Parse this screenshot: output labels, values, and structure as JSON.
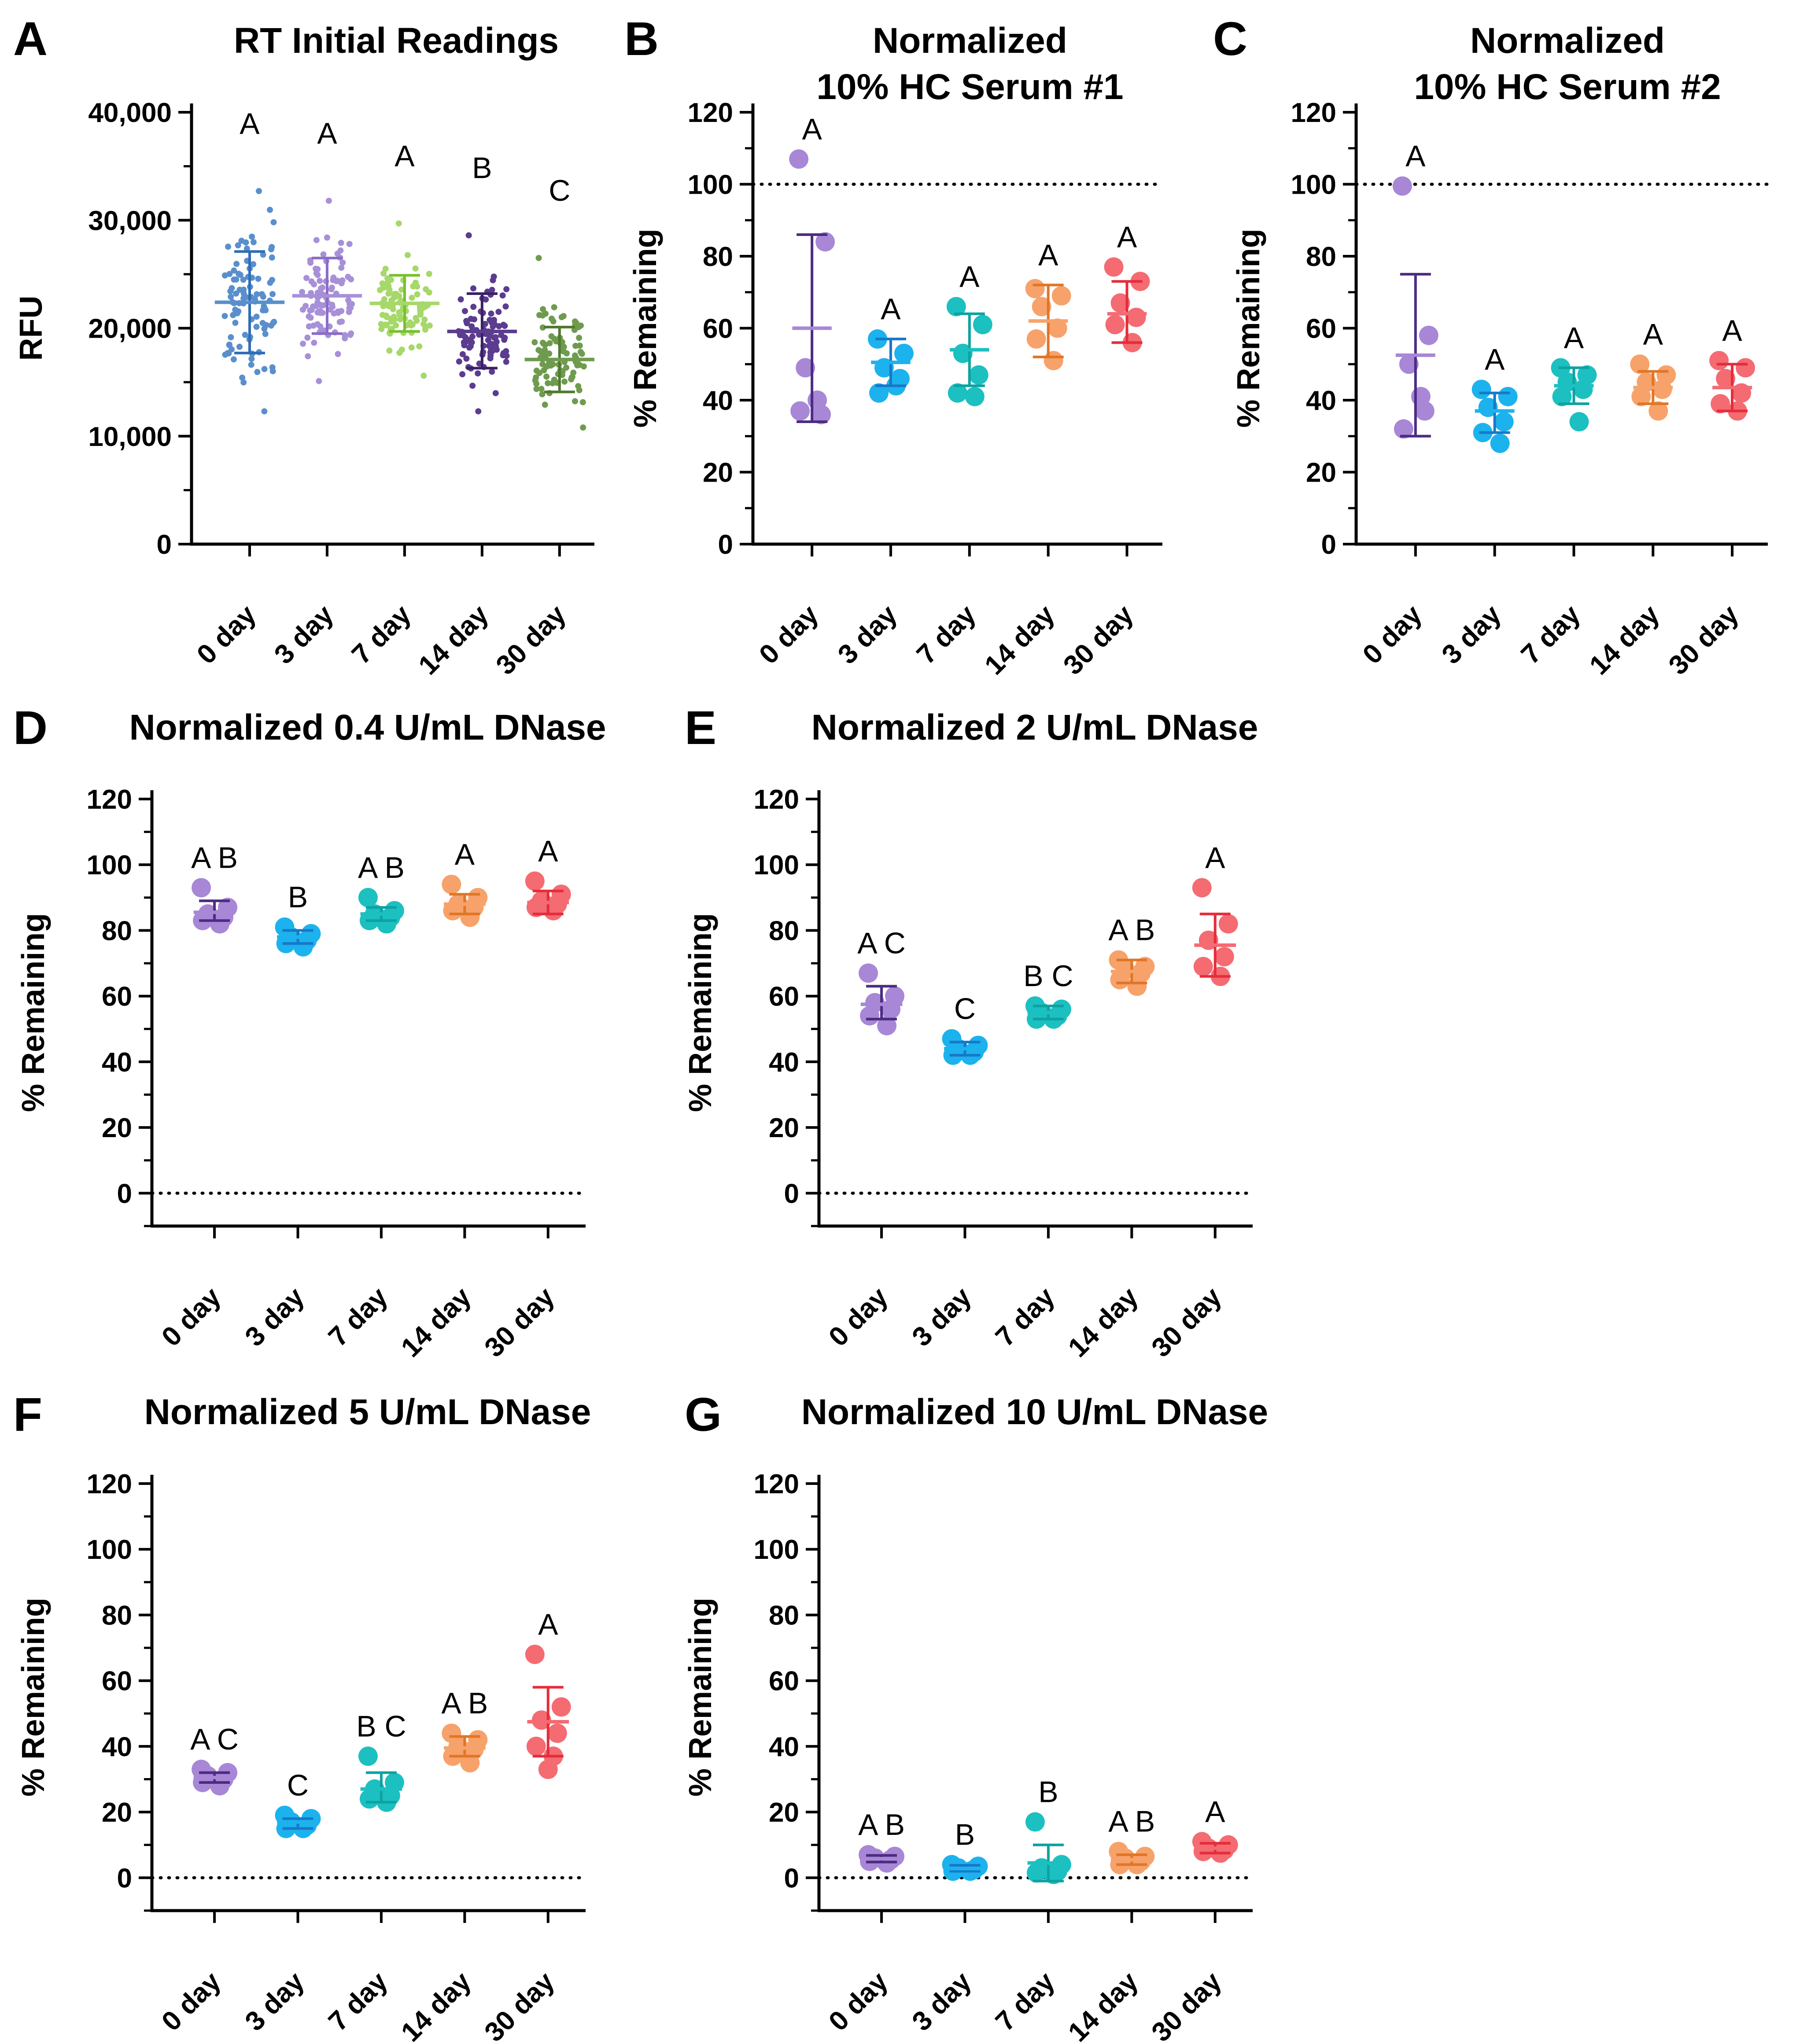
{
  "figure": {
    "palette": {
      "0 day": "#a787d6",
      "3 day": "#1cb2ee",
      "7 day": "#1cc0c0",
      "14 day": "#f7a26b",
      "30 day": "#f46b72",
      "A_0 day": "#5a8fcc",
      "A_3 day": "#a890d8",
      "A_7 day": "#a6d86a",
      "A_14 day": "#5b3c8f",
      "A_30 day": "#6f9b4e"
    },
    "errorbar_colors": {
      "0 day": "#4c2c82",
      "3 day": "#1878c8",
      "7 day": "#0ea2a2",
      "14 day": "#e07626",
      "30 day": "#e52d3a",
      "A_0 day": "#2f6eb6",
      "A_3 day": "#8a6cc8",
      "A_7 day": "#78c030",
      "A_14 day": "#3a2166",
      "A_30 day": "#4f7a30"
    }
  },
  "chart_data": [
    {
      "id": "A",
      "letter": "A",
      "type": "scatter",
      "title": [
        "RT Initial Readings"
      ],
      "ylabel": "RFU",
      "xlabel": "",
      "ylim": [
        0,
        40000
      ],
      "yticks": [
        0,
        10000,
        20000,
        30000,
        40000
      ],
      "ytick_labels": [
        "0",
        "10,000",
        "20,000",
        "30,000",
        "40,000"
      ],
      "minor_ticks": true,
      "reference_line": null,
      "categories": [
        "0 day",
        "3 day",
        "7 day",
        "14 day",
        "30 day"
      ],
      "dense": true,
      "series": [
        {
          "category": "0 day",
          "n": 96,
          "min": 12300,
          "max": 32700,
          "mean": 22400,
          "err_low": 17700,
          "err_high": 27100,
          "letters": "A"
        },
        {
          "category": "3 day",
          "n": 96,
          "min": 15100,
          "max": 31800,
          "mean": 23000,
          "err_low": 19500,
          "err_high": 26500,
          "letters": "A"
        },
        {
          "category": "7 day",
          "n": 96,
          "min": 15600,
          "max": 29700,
          "mean": 22300,
          "err_low": 19700,
          "err_high": 24900,
          "letters": "A"
        },
        {
          "category": "14 day",
          "n": 96,
          "min": 12300,
          "max": 28600,
          "mean": 19700,
          "err_low": 16300,
          "err_high": 23200,
          "letters": "B"
        },
        {
          "category": "30 day",
          "n": 96,
          "min": 10800,
          "max": 26500,
          "mean": 17100,
          "err_low": 14100,
          "err_high": 20100,
          "letters": "C"
        }
      ]
    },
    {
      "id": "B",
      "letter": "B",
      "type": "scatter",
      "title": [
        "Normalized",
        "10% HC Serum #1"
      ],
      "ylabel": "% Remaining",
      "xlabel": "",
      "ylim": [
        0,
        120
      ],
      "yticks": [
        0,
        20,
        40,
        60,
        80,
        100,
        120
      ],
      "ytick_labels": [
        "0",
        "20",
        "40",
        "60",
        "80",
        "100",
        "120"
      ],
      "minor_ticks": true,
      "reference_line": 100,
      "categories": [
        "0 day",
        "3 day",
        "7 day",
        "14 day",
        "30 day"
      ],
      "series": [
        {
          "category": "0 day",
          "points": [
            107,
            84,
            49,
            36,
            37,
            40
          ],
          "mean": 60,
          "err_low": 34,
          "err_high": 86,
          "letters": "A"
        },
        {
          "category": "3 day",
          "points": [
            57,
            53,
            49,
            46,
            42,
            44
          ],
          "mean": 50.5,
          "err_low": 44,
          "err_high": 57,
          "letters": "A"
        },
        {
          "category": "7 day",
          "points": [
            66,
            61,
            53,
            47,
            42,
            41
          ],
          "mean": 54,
          "err_low": 44,
          "err_high": 64,
          "letters": "A"
        },
        {
          "category": "14 day",
          "points": [
            71,
            69,
            66,
            60,
            57,
            51
          ],
          "mean": 62,
          "err_low": 52,
          "err_high": 72,
          "letters": "A"
        },
        {
          "category": "30 day",
          "points": [
            77,
            73,
            67,
            63,
            61,
            56
          ],
          "mean": 64,
          "err_low": 56,
          "err_high": 73,
          "letters": "A"
        }
      ]
    },
    {
      "id": "C",
      "letter": "C",
      "type": "scatter",
      "title": [
        "Normalized",
        "10% HC Serum #2"
      ],
      "ylabel": "% Remaining",
      "xlabel": "",
      "ylim": [
        0,
        120
      ],
      "yticks": [
        0,
        20,
        40,
        60,
        80,
        100,
        120
      ],
      "ytick_labels": [
        "0",
        "20",
        "40",
        "60",
        "80",
        "100",
        "120"
      ],
      "minor_ticks": true,
      "reference_line": 100,
      "categories": [
        "0 day",
        "3 day",
        "7 day",
        "14 day",
        "30 day"
      ],
      "series": [
        {
          "category": "0 day",
          "points": [
            99.5,
            58,
            50,
            37,
            32,
            41
          ],
          "mean": 52.5,
          "err_low": 30,
          "err_high": 75,
          "letters": "A"
        },
        {
          "category": "3 day",
          "points": [
            43,
            41,
            38,
            34,
            31,
            28
          ],
          "mean": 37,
          "err_low": 31,
          "err_high": 42,
          "letters": "A"
        },
        {
          "category": "7 day",
          "points": [
            49,
            47,
            45,
            43,
            41,
            34
          ],
          "mean": 44,
          "err_low": 39,
          "err_high": 49,
          "letters": "A"
        },
        {
          "category": "14 day",
          "points": [
            50,
            47,
            45,
            43,
            41,
            37
          ],
          "mean": 43.5,
          "err_low": 39,
          "err_high": 48,
          "letters": "A"
        },
        {
          "category": "30 day",
          "points": [
            51,
            49,
            46,
            42,
            39,
            37
          ],
          "mean": 43.5,
          "err_low": 37,
          "err_high": 50,
          "letters": "A"
        }
      ]
    },
    {
      "id": "D",
      "letter": "D",
      "type": "scatter",
      "title": [
        "Normalized 0.4 U/mL DNase"
      ],
      "ylabel": "% Remaining",
      "xlabel": "",
      "ylim": [
        -10,
        120
      ],
      "yticks": [
        0,
        20,
        40,
        60,
        80,
        100,
        120
      ],
      "ytick_labels": [
        "0",
        "20",
        "40",
        "60",
        "80",
        "100",
        "120"
      ],
      "minor_ticks": true,
      "reference_line": 0,
      "categories": [
        "0 day",
        "3 day",
        "7 day",
        "14 day",
        "30 day"
      ],
      "series": [
        {
          "category": "0 day",
          "points": [
            93,
            87,
            85,
            84,
            83,
            82
          ],
          "mean": 85.5,
          "err_low": 83,
          "err_high": 89,
          "letters": "A B"
        },
        {
          "category": "3 day",
          "points": [
            81,
            79,
            78,
            77,
            76,
            75
          ],
          "mean": 78,
          "err_low": 76,
          "err_high": 80,
          "letters": "B"
        },
        {
          "category": "7 day",
          "points": [
            90,
            86,
            85,
            84,
            83,
            82
          ],
          "mean": 85,
          "err_low": 83,
          "err_high": 87,
          "letters": "A B"
        },
        {
          "category": "14 day",
          "points": [
            94,
            90,
            88,
            87,
            86,
            84
          ],
          "mean": 88,
          "err_low": 85,
          "err_high": 91,
          "letters": "A"
        },
        {
          "category": "30 day",
          "points": [
            95,
            91,
            89,
            88,
            87,
            86
          ],
          "mean": 88.5,
          "err_low": 85,
          "err_high": 92,
          "letters": "A"
        }
      ]
    },
    {
      "id": "E",
      "letter": "E",
      "type": "scatter",
      "title": [
        "Normalized 2 U/mL DNase"
      ],
      "ylabel": "% Remaining",
      "xlabel": "",
      "ylim": [
        -10,
        120
      ],
      "yticks": [
        0,
        20,
        40,
        60,
        80,
        100,
        120
      ],
      "ytick_labels": [
        "0",
        "20",
        "40",
        "60",
        "80",
        "100",
        "120"
      ],
      "minor_ticks": true,
      "reference_line": 0,
      "categories": [
        "0 day",
        "3 day",
        "7 day",
        "14 day",
        "30 day"
      ],
      "series": [
        {
          "category": "0 day",
          "points": [
            67,
            60,
            58,
            56,
            54,
            51
          ],
          "mean": 57.5,
          "err_low": 53,
          "err_high": 63,
          "letters": "A C"
        },
        {
          "category": "3 day",
          "points": [
            47,
            45,
            44,
            43,
            42,
            42
          ],
          "mean": 44,
          "err_low": 42,
          "err_high": 46,
          "letters": "C"
        },
        {
          "category": "7 day",
          "points": [
            57,
            56,
            55,
            54,
            53,
            53
          ],
          "mean": 55,
          "err_low": 53,
          "err_high": 57,
          "letters": "B C"
        },
        {
          "category": "14 day",
          "points": [
            71,
            69,
            68,
            67,
            65,
            63
          ],
          "mean": 67.5,
          "err_low": 64,
          "err_high": 71,
          "letters": "A B"
        },
        {
          "category": "30 day",
          "points": [
            93,
            82,
            77,
            72,
            69,
            66
          ],
          "mean": 75.5,
          "err_low": 66,
          "err_high": 85,
          "letters": "A"
        }
      ]
    },
    {
      "id": "F",
      "letter": "F",
      "type": "scatter",
      "title": [
        "Normalized 5 U/mL DNase"
      ],
      "ylabel": "% Remaining",
      "xlabel": "",
      "ylim": [
        -10,
        120
      ],
      "yticks": [
        0,
        20,
        40,
        60,
        80,
        100,
        120
      ],
      "ytick_labels": [
        "0",
        "20",
        "40",
        "60",
        "80",
        "100",
        "120"
      ],
      "minor_ticks": true,
      "reference_line": 0,
      "categories": [
        "0 day",
        "3 day",
        "7 day",
        "14 day",
        "30 day"
      ],
      "series": [
        {
          "category": "0 day",
          "points": [
            33,
            32,
            31,
            30,
            29,
            28
          ],
          "mean": 30.5,
          "err_low": 29,
          "err_high": 32,
          "letters": "A C"
        },
        {
          "category": "3 day",
          "points": [
            19,
            18,
            17,
            16,
            15,
            15
          ],
          "mean": 17,
          "err_low": 15,
          "err_high": 18,
          "letters": "C"
        },
        {
          "category": "7 day",
          "points": [
            37,
            29,
            27,
            25,
            24,
            23
          ],
          "mean": 27,
          "err_low": 23,
          "err_high": 32,
          "letters": "B C"
        },
        {
          "category": "14 day",
          "points": [
            44,
            42,
            40,
            39,
            37,
            35
          ],
          "mean": 39.5,
          "err_low": 37,
          "err_high": 43,
          "letters": "A B"
        },
        {
          "category": "30 day",
          "points": [
            68,
            52,
            48,
            44,
            40,
            37,
            33
          ],
          "mean": 47.5,
          "err_low": 37,
          "err_high": 58,
          "letters": "A"
        }
      ]
    },
    {
      "id": "G",
      "letter": "G",
      "type": "scatter",
      "title": [
        "Normalized 10 U/mL DNase"
      ],
      "ylabel": "% Remaining",
      "xlabel": "",
      "ylim": [
        -10,
        120
      ],
      "yticks": [
        0,
        20,
        40,
        60,
        80,
        100,
        120
      ],
      "ytick_labels": [
        "0",
        "20",
        "40",
        "60",
        "80",
        "100",
        "120"
      ],
      "minor_ticks": true,
      "reference_line": 0,
      "categories": [
        "0 day",
        "3 day",
        "7 day",
        "14 day",
        "30 day"
      ],
      "series": [
        {
          "category": "0 day",
          "points": [
            7,
            6.5,
            6,
            5.5,
            5,
            4.5
          ],
          "mean": 5.8,
          "err_low": 4.8,
          "err_high": 6.8,
          "letters": "A B"
        },
        {
          "category": "3 day",
          "points": [
            4,
            3.5,
            3,
            2.5,
            2,
            2
          ],
          "mean": 2.8,
          "err_low": 2,
          "err_high": 3.8,
          "letters": "B"
        },
        {
          "category": "7 day",
          "points": [
            17,
            4,
            3,
            2,
            1.5,
            1
          ],
          "mean": 4.5,
          "err_low": -1,
          "err_high": 10,
          "letters": "B"
        },
        {
          "category": "14 day",
          "points": [
            8,
            6.5,
            6,
            5,
            4,
            4
          ],
          "mean": 5.5,
          "err_low": 4,
          "err_high": 7,
          "letters": "A B"
        },
        {
          "category": "30 day",
          "points": [
            11,
            10,
            9,
            8.5,
            8,
            7.5
          ],
          "mean": 9,
          "err_low": 7.5,
          "err_high": 10.5,
          "letters": "A"
        }
      ]
    }
  ]
}
